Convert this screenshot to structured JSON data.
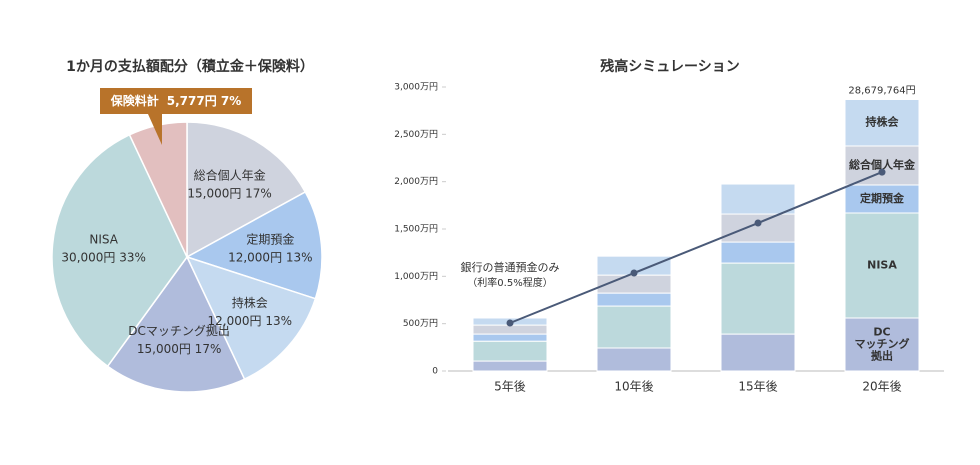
{
  "chart_data": [
    {
      "type": "pie",
      "title": "1か月の支払額配分（積立金＋保険料）",
      "categories": [
        "総合個人年金",
        "定期預金",
        "持株会",
        "DCマッチング拠出",
        "NISA",
        "保険料計"
      ],
      "values": [
        17,
        13,
        13,
        17,
        33,
        7
      ],
      "value_labels": [
        "15,000円 17%",
        "12,000円 13%",
        "12,000円 13%",
        "15,000円 17%",
        "30,000円 33%",
        "5,777円 7%"
      ],
      "colors": [
        "#cfd3de",
        "#a9c8ee",
        "#c5daf0",
        "#b0bcdc",
        "#bcd9dc",
        "#e2bfbf"
      ]
    },
    {
      "type": "bar",
      "stacked": true,
      "title": "残高シミュレーション",
      "categories": [
        "5年後",
        "10年後",
        "15年後",
        "20年後"
      ],
      "ylim": [
        0,
        3000
      ],
      "yticks": [
        0,
        {
          "value": 500,
          "label": "500万円"
        },
        {
          "value": 1000,
          "label": "1,000万円"
        },
        {
          "value": 1500,
          "label": "1,500万円"
        },
        {
          "value": 2000,
          "label": "2,000万円"
        },
        {
          "value": 2500,
          "label": "2,500万円"
        },
        {
          "value": 3000,
          "label": "3,000万円"
        }
      ],
      "series": [
        {
          "name": "DC\nマッチング\n拠出",
          "color": "#b0bcdc",
          "values": [
            105,
            243,
            390,
            560
          ]
        },
        {
          "name": "NISA",
          "color": "#bcd9dc",
          "values": [
            210,
            443,
            750,
            1109
          ]
        },
        {
          "name": "定期預金",
          "color": "#a9c8ee",
          "values": [
            75,
            137,
            222,
            296
          ]
        },
        {
          "name": "総合個人年金",
          "color": "#cfd3de",
          "values": [
            95,
            190,
            296,
            412
          ]
        },
        {
          "name": "持株会",
          "color": "#c5daf0",
          "values": [
            75,
            200,
            317,
            491
          ]
        },
        {
          "name": "銀行の普通預金のみ",
          "note": "（利率0.5%程度）",
          "type": "line",
          "color": "#4a5a78",
          "values": [
            507,
            1035,
            1563,
            2101
          ]
        }
      ],
      "annotations": [
        {
          "text": "28,679,764円"
        }
      ]
    }
  ]
}
